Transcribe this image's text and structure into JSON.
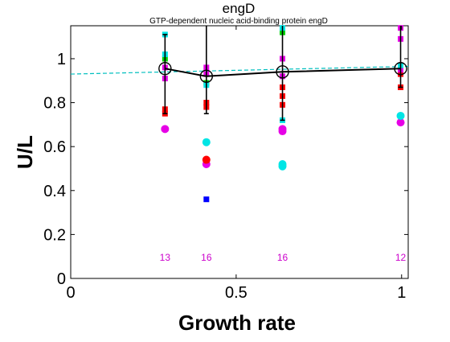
{
  "chart_data": {
    "type": "scatter",
    "title": "engD",
    "subtitle": "GTP-dependent nucleic acid-binding protein engD",
    "xlabel": "Growth rate",
    "ylabel": "U/L",
    "xlim": [
      0,
      1.02
    ],
    "ylim": [
      0,
      1.15
    ],
    "xticks": [
      0,
      0.5,
      1
    ],
    "xtick_labels": [
      "0",
      "0.5",
      "1"
    ],
    "yticks": [
      0,
      0.2,
      0.4,
      0.6,
      0.8,
      1
    ],
    "ytick_labels": [
      "0",
      "0.2",
      "0.4",
      "0.6",
      "0.8",
      "1"
    ],
    "grid": false,
    "colors": {
      "red": "#ff0000",
      "magenta": "#e600e6",
      "cyan": "#00e5e5",
      "green": "#00d000",
      "blue": "#0000ff",
      "mean": "#000000",
      "fit": "#00bfbf",
      "count": "#cc00cc"
    },
    "square_series": [
      {
        "color": "red",
        "points": [
          [
            0.285,
            0.75
          ],
          [
            0.285,
            0.77
          ],
          [
            0.41,
            0.78
          ],
          [
            0.41,
            0.8
          ],
          [
            0.41,
            0.53
          ],
          [
            0.64,
            0.79
          ],
          [
            0.64,
            0.83
          ],
          [
            0.64,
            0.87
          ],
          [
            0.997,
            0.87
          ],
          [
            0.997,
            0.93
          ]
        ]
      },
      {
        "color": "magenta",
        "points": [
          [
            0.285,
            0.91
          ],
          [
            0.285,
            0.96
          ],
          [
            0.41,
            0.93
          ],
          [
            0.41,
            0.96
          ],
          [
            0.64,
            1.0
          ],
          [
            0.64,
            0.92
          ],
          [
            0.997,
            1.09
          ],
          [
            0.997,
            1.14
          ],
          [
            0.997,
            0.95
          ]
        ]
      },
      {
        "color": "green",
        "points": [
          [
            0.285,
            1.0
          ],
          [
            0.41,
            0.89
          ],
          [
            0.64,
            1.12
          ]
        ]
      },
      {
        "color": "cyan",
        "points": [
          [
            0.285,
            1.02
          ],
          [
            0.285,
            1.11
          ],
          [
            0.41,
            0.88
          ],
          [
            0.64,
            1.14
          ],
          [
            0.64,
            0.72
          ],
          [
            0.997,
            0.97
          ]
        ]
      },
      {
        "color": "blue",
        "points": [
          [
            0.41,
            0.36
          ]
        ]
      }
    ],
    "circle_series": [
      {
        "color": "magenta",
        "points": [
          [
            0.285,
            0.68
          ],
          [
            0.41,
            0.52
          ],
          [
            0.64,
            0.67
          ],
          [
            0.64,
            0.68
          ],
          [
            0.997,
            0.71
          ]
        ]
      },
      {
        "color": "cyan",
        "points": [
          [
            0.41,
            0.62
          ],
          [
            0.64,
            0.52
          ],
          [
            0.64,
            0.51
          ],
          [
            0.997,
            0.74
          ]
        ]
      },
      {
        "color": "red",
        "points": [
          [
            0.41,
            0.54
          ]
        ]
      }
    ],
    "means": {
      "x": [
        0.285,
        0.41,
        0.64,
        0.997
      ],
      "y": [
        0.955,
        0.92,
        0.94,
        0.955
      ],
      "err_low": [
        0.75,
        0.75,
        0.72,
        0.87
      ],
      "err_high": [
        1.11,
        1.15,
        1.15,
        1.15
      ]
    },
    "fit_line": {
      "x": [
        0,
        1.02
      ],
      "y": [
        0.93,
        0.965
      ]
    },
    "counts": [
      {
        "x": 0.285,
        "y": 0.095,
        "label": "13"
      },
      {
        "x": 0.41,
        "y": 0.095,
        "label": "16"
      },
      {
        "x": 0.64,
        "y": 0.095,
        "label": "16"
      },
      {
        "x": 0.997,
        "y": 0.095,
        "label": "12"
      }
    ]
  }
}
